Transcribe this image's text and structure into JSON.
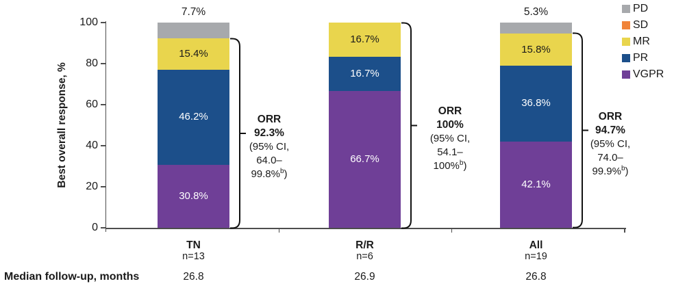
{
  "chart_data": {
    "type": "bar",
    "stacked": true,
    "ylabel": "Best overall response, %",
    "ylim": [
      0,
      100
    ],
    "y_ticks": [
      0,
      20,
      40,
      60,
      80,
      100
    ],
    "grid": false,
    "legend_position": "top-right",
    "categories": [
      "TN",
      "R/R",
      "All"
    ],
    "category_sublabels": [
      "n=13",
      "n=6",
      "n=19"
    ],
    "series": [
      {
        "name": "VGPR",
        "color": "#6f3f97",
        "text_color": "#ffffff",
        "values": [
          30.8,
          66.7,
          42.1
        ]
      },
      {
        "name": "PR",
        "color": "#1c4f8a",
        "text_color": "#ffffff",
        "values": [
          46.2,
          16.7,
          36.8
        ]
      },
      {
        "name": "MR",
        "color": "#e9d54d",
        "text_color": "#1a1a1a",
        "values": [
          15.4,
          16.7,
          15.8
        ]
      },
      {
        "name": "SD",
        "color": "#f0843a",
        "text_color": "#1a1a1a",
        "values": [
          0,
          0,
          0
        ]
      },
      {
        "name": "PD",
        "color": "#a7a9ac",
        "text_color": "#1a1a1a",
        "values": [
          7.7,
          0,
          5.3
        ],
        "label_above_bar": true
      }
    ],
    "legend_order": [
      "PD",
      "SD",
      "MR",
      "PR",
      "VGPR"
    ]
  },
  "annotations": {
    "orr_blocks": [
      {
        "heading": "ORR",
        "value": "92.3%",
        "ci_open": "(95% CI,",
        "ci_low": "64.0–",
        "ci_high": "99.8%",
        "ci_sup": "b",
        "ci_close": ")",
        "bracket_top_pct": 92.3
      },
      {
        "heading": "ORR",
        "value": "100%",
        "ci_open": "(95% CI,",
        "ci_low": "54.1–",
        "ci_high": "100%",
        "ci_sup": "b",
        "ci_close": ")",
        "bracket_top_pct": 100
      },
      {
        "heading": "ORR",
        "value": "94.7%",
        "ci_open": "(95% CI,",
        "ci_low": "74.0–",
        "ci_high": "99.9%",
        "ci_sup": "b",
        "ci_close": ")",
        "bracket_top_pct": 94.7
      }
    ]
  },
  "median_row": {
    "label": "Median follow-up, months",
    "values": [
      "26.8",
      "26.9",
      "26.8"
    ]
  }
}
